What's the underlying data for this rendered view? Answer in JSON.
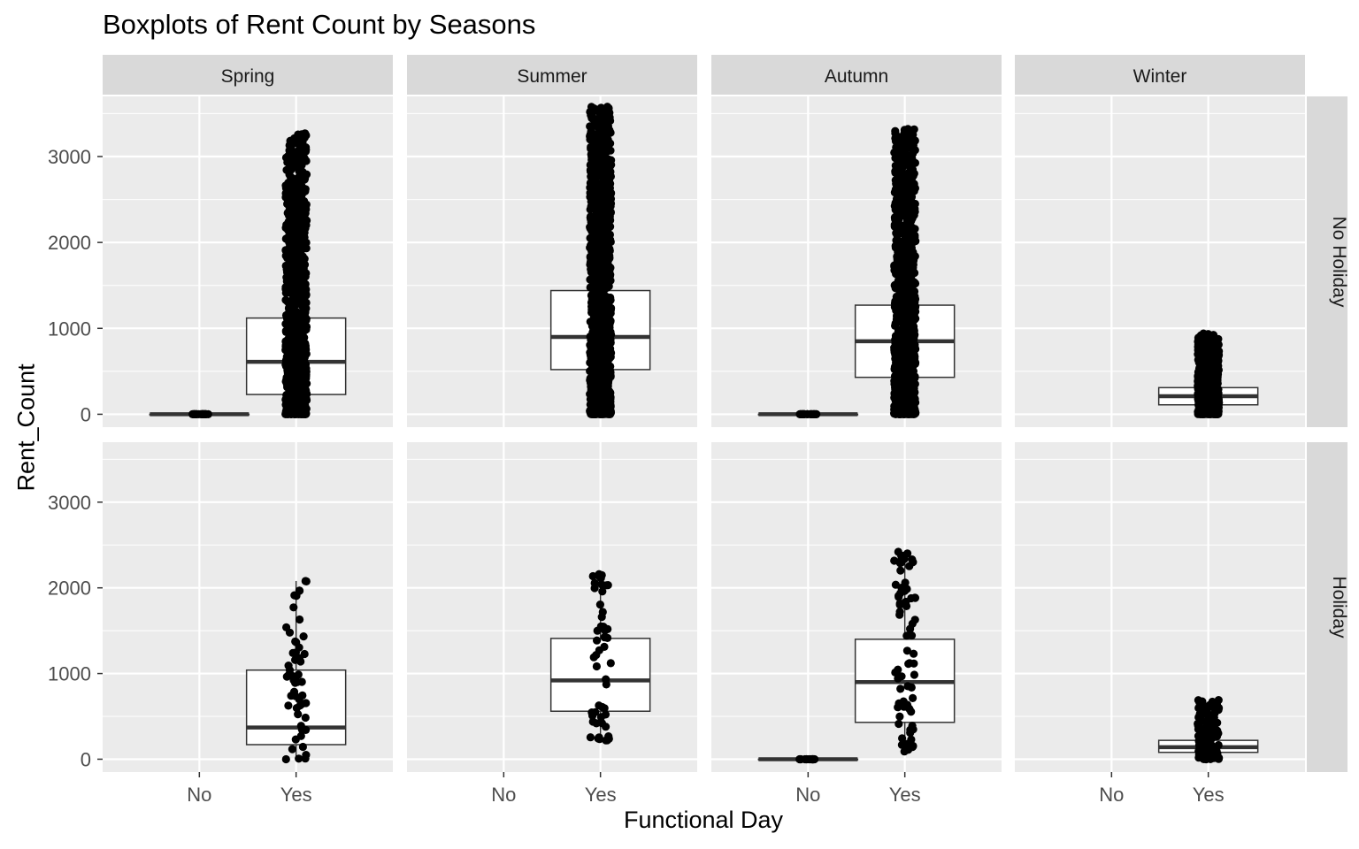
{
  "title": "Boxplots of Rent Count by Seasons",
  "xlabel": "Functional Day",
  "ylabel": "Rent_Count",
  "colors": {
    "panel_bg": "#EBEBEB",
    "strip_bg": "#D9D9D9",
    "grid": "#FFFFFF",
    "box_fill": "#FFFFFF",
    "box_line": "#333333",
    "point": "#000000",
    "tick_text": "#4D4D4D",
    "strip_text": "#1A1A1A"
  },
  "chart_data": {
    "type": "boxplot",
    "title": "Boxplots of Rent Count by Seasons",
    "xlabel": "Functional Day",
    "ylabel": "Rent_Count",
    "categories": [
      "No",
      "Yes"
    ],
    "columns": [
      "Spring",
      "Summer",
      "Autumn",
      "Winter"
    ],
    "rows": [
      "No Holiday",
      "Holiday"
    ],
    "ylim": [
      -150,
      3700
    ],
    "yticks": [
      0,
      1000,
      2000,
      3000
    ],
    "ytick_labels": [
      "0",
      "1000",
      "2000",
      "3000"
    ],
    "grid": true,
    "overlay": "jittered points",
    "panels": [
      {
        "row": "No Holiday",
        "col": "Spring",
        "boxes": [
          {
            "x": "No",
            "q1": 0,
            "median": 0,
            "q3": 0,
            "whisker_low": 0,
            "whisker_high": 0,
            "points_min": 0,
            "points_max": 0,
            "n_points": 25
          },
          {
            "x": "Yes",
            "q1": 230,
            "median": 610,
            "q3": 1120,
            "whisker_low": 0,
            "whisker_high": 2450,
            "points_min": 0,
            "points_max": 3270,
            "n_points": 900
          }
        ]
      },
      {
        "row": "No Holiday",
        "col": "Summer",
        "boxes": [
          {
            "x": "Yes",
            "q1": 520,
            "median": 900,
            "q3": 1440,
            "whisker_low": 0,
            "whisker_high": 2800,
            "points_min": 0,
            "points_max": 3580,
            "n_points": 1100
          }
        ]
      },
      {
        "row": "No Holiday",
        "col": "Autumn",
        "boxes": [
          {
            "x": "No",
            "q1": 0,
            "median": 0,
            "q3": 0,
            "whisker_low": 0,
            "whisker_high": 0,
            "points_min": 0,
            "points_max": 0,
            "n_points": 25
          },
          {
            "x": "Yes",
            "q1": 430,
            "median": 850,
            "q3": 1270,
            "whisker_low": 0,
            "whisker_high": 2500,
            "points_min": 0,
            "points_max": 3320,
            "n_points": 950
          }
        ]
      },
      {
        "row": "No Holiday",
        "col": "Winter",
        "boxes": [
          {
            "x": "Yes",
            "q1": 110,
            "median": 210,
            "q3": 310,
            "whisker_low": 0,
            "whisker_high": 610,
            "points_min": 0,
            "points_max": 940,
            "n_points": 700
          }
        ]
      },
      {
        "row": "Holiday",
        "col": "Spring",
        "boxes": [
          {
            "x": "Yes",
            "q1": 170,
            "median": 370,
            "q3": 1040,
            "whisker_low": 0,
            "whisker_high": 2080,
            "points_min": 0,
            "points_max": 2080,
            "n_points": 55
          }
        ]
      },
      {
        "row": "Holiday",
        "col": "Summer",
        "boxes": [
          {
            "x": "Yes",
            "q1": 560,
            "median": 920,
            "q3": 1410,
            "whisker_low": 220,
            "whisker_high": 2160,
            "points_min": 220,
            "points_max": 2160,
            "n_points": 50
          }
        ]
      },
      {
        "row": "Holiday",
        "col": "Autumn",
        "boxes": [
          {
            "x": "No",
            "q1": 0,
            "median": 0,
            "q3": 0,
            "whisker_low": 0,
            "whisker_high": 0,
            "points_min": 0,
            "points_max": 0,
            "n_points": 15
          },
          {
            "x": "Yes",
            "q1": 430,
            "median": 900,
            "q3": 1400,
            "whisker_low": 90,
            "whisker_high": 2420,
            "points_min": 90,
            "points_max": 2420,
            "n_points": 75
          }
        ]
      },
      {
        "row": "Holiday",
        "col": "Winter",
        "boxes": [
          {
            "x": "Yes",
            "q1": 80,
            "median": 140,
            "q3": 220,
            "whisker_low": 0,
            "whisker_high": 330,
            "points_min": 0,
            "points_max": 690,
            "n_points": 120
          }
        ]
      }
    ]
  }
}
